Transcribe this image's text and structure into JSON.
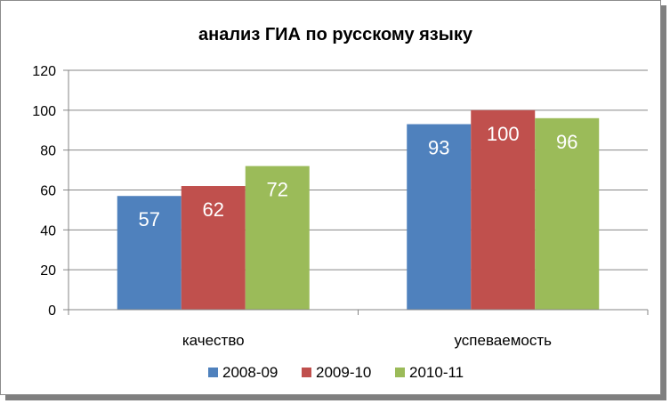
{
  "chart_data": {
    "type": "bar",
    "title": "анализ ГИА по русскому языку",
    "categories": [
      "качество",
      "успеваемость"
    ],
    "series": [
      {
        "name": "2008-09",
        "values": [
          57,
          93
        ],
        "color": "#4f81bd"
      },
      {
        "name": "2009-10",
        "values": [
          62,
          100
        ],
        "color": "#c0504d"
      },
      {
        "name": "2010-11",
        "values": [
          72,
          96
        ],
        "color": "#9bbb59"
      }
    ],
    "ylim": [
      0,
      120
    ],
    "yticks": [
      "0",
      "20",
      "40",
      "60",
      "80",
      "100",
      "120"
    ],
    "grid": true,
    "legend": "bottom",
    "data_labels": true
  }
}
